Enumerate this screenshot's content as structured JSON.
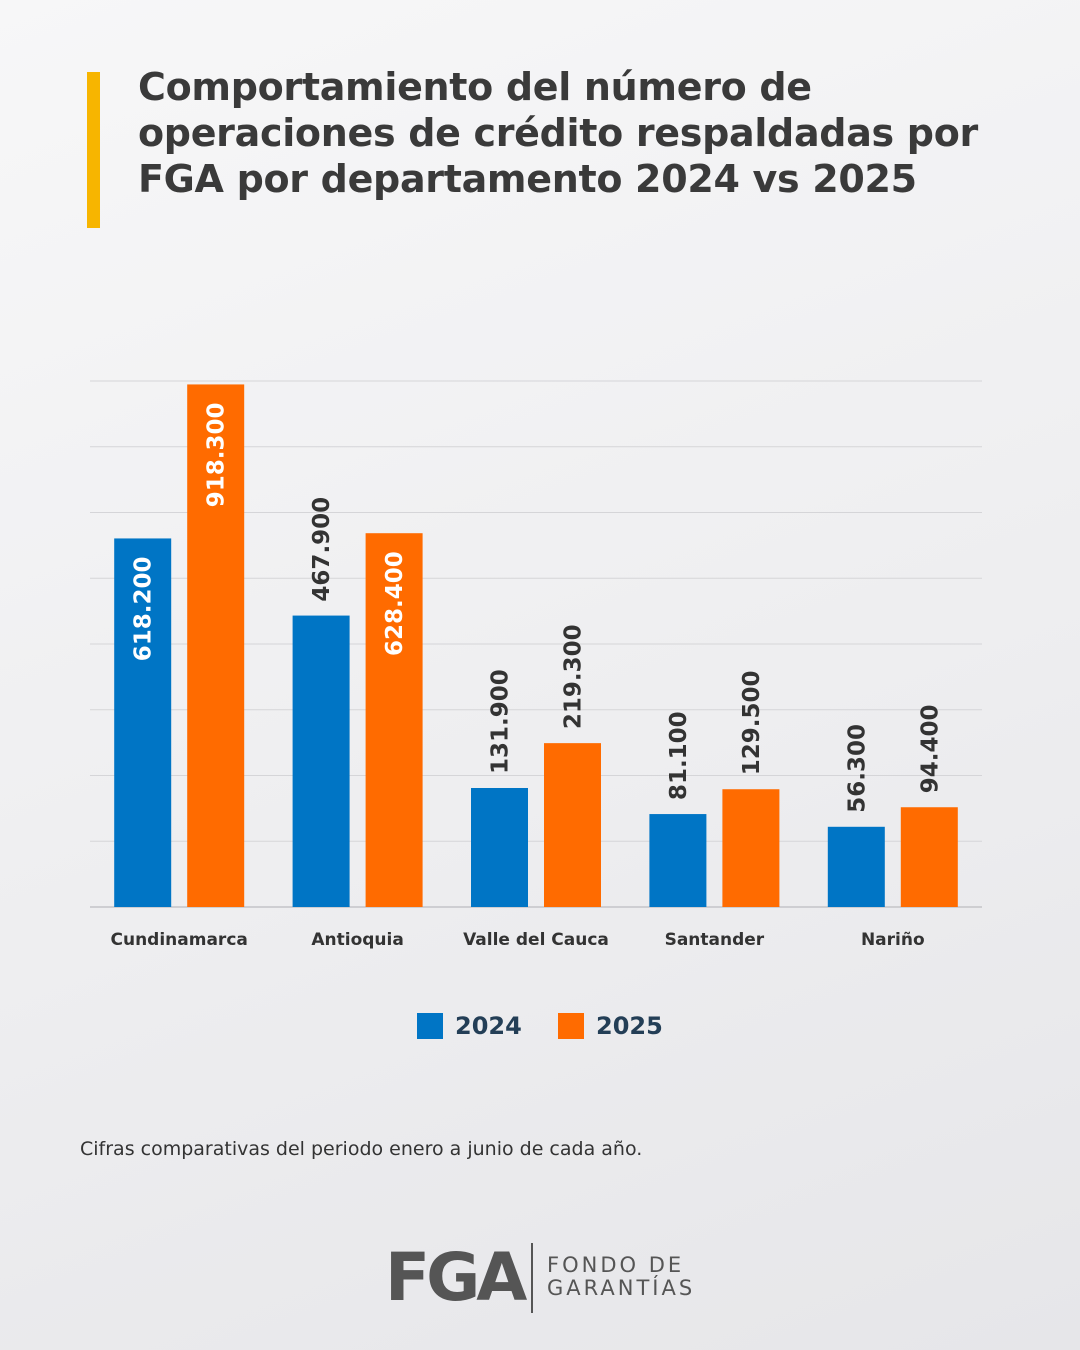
{
  "title_lines": [
    "Comportamiento del número de",
    "operaciones de crédito respaldadas por",
    "FGA por departamento 2024 vs 2025"
  ],
  "colors": {
    "accent": "#f7b500",
    "series_2024": "#0075c5",
    "series_2025": "#ff6b00",
    "grid": "#d5d5d8"
  },
  "chart_data": {
    "type": "bar",
    "title": "Comportamiento del número de operaciones de crédito respaldadas por FGA por departamento 2024 vs 2025",
    "categories": [
      "Cundinamarca",
      "Antioquia",
      "Valle del Cauca",
      "Santander",
      "Nariño"
    ],
    "series": [
      {
        "name": "2024",
        "values": [
          618200,
          467900,
          131900,
          81100,
          56300
        ],
        "labels": [
          "618.200",
          "467.900",
          "131.900",
          "81.100",
          "56.300"
        ]
      },
      {
        "name": "2025",
        "values": [
          918300,
          628400,
          219300,
          129500,
          94400
        ],
        "labels": [
          "918.300",
          "628.400",
          "219.300",
          "129.500",
          "94.400"
        ]
      }
    ],
    "ylim": [
      -100000,
      925000
    ],
    "grid": true,
    "legend": "bottom-center"
  },
  "legend": [
    {
      "label": "2024",
      "color": "#0075c5"
    },
    {
      "label": "2025",
      "color": "#ff6b00"
    }
  ],
  "footnote": "Cifras comparativas del periodo enero a junio de cada año.",
  "logo": {
    "mark": "FGA",
    "line1": "FONDO DE",
    "line2": "GARANTÍAS"
  }
}
